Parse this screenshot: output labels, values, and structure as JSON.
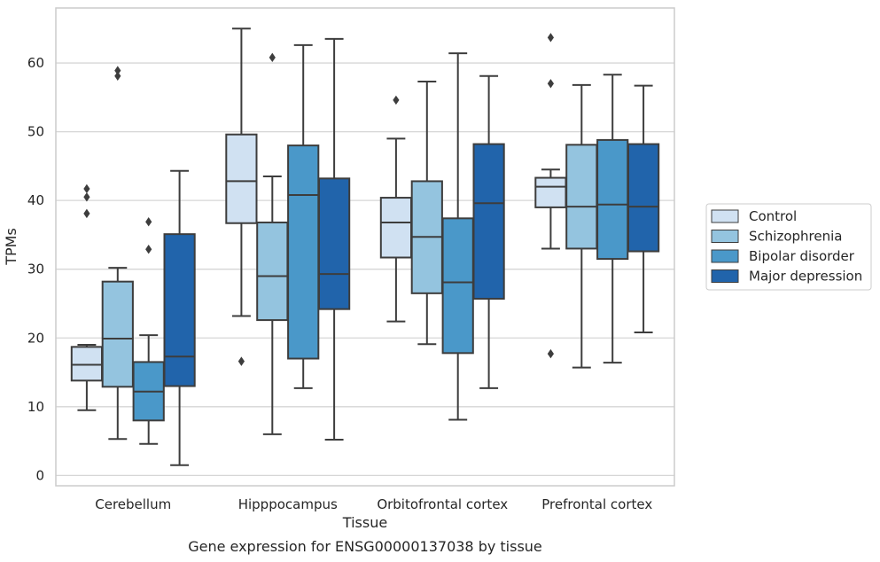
{
  "chart_data": {
    "type": "box",
    "caption": "Gene expression for ENSG00000137038 by tissue",
    "xlabel": "Tissue",
    "ylabel": "TPMs",
    "ylim": [
      -1.5,
      68
    ],
    "yticks": [
      0,
      10,
      20,
      30,
      40,
      50,
      60
    ],
    "grid": true,
    "legend_position": "right",
    "categories": [
      "Cerebellum",
      "Hipppocampus",
      "Orbitofrontal cortex",
      "Prefrontal cortex"
    ],
    "series": [
      {
        "name": "Control",
        "color": "#d0e1f2",
        "boxes": [
          {
            "whisker_low": 9.5,
            "q1": 13.8,
            "median": 16.1,
            "q3": 18.7,
            "whisker_high": 19.0,
            "outliers": [
              38.1,
              40.5,
              41.7
            ]
          },
          {
            "whisker_low": 23.2,
            "q1": 36.7,
            "median": 42.8,
            "q3": 49.6,
            "whisker_high": 65.0,
            "outliers": [
              16.6
            ]
          },
          {
            "whisker_low": 22.4,
            "q1": 31.7,
            "median": 36.8,
            "q3": 40.4,
            "whisker_high": 49.0,
            "outliers": [
              54.6
            ]
          },
          {
            "whisker_low": 33.0,
            "q1": 39.0,
            "median": 42.0,
            "q3": 43.3,
            "whisker_high": 44.5,
            "outliers": [
              17.7,
              57.0,
              63.7
            ]
          }
        ]
      },
      {
        "name": "Schizophrenia",
        "color": "#94c4df",
        "boxes": [
          {
            "whisker_low": 5.3,
            "q1": 12.9,
            "median": 19.9,
            "q3": 28.2,
            "whisker_high": 30.2,
            "outliers": [
              58.1,
              58.9
            ]
          },
          {
            "whisker_low": 6.0,
            "q1": 22.6,
            "median": 29.0,
            "q3": 36.8,
            "whisker_high": 43.5,
            "outliers": [
              60.8
            ]
          },
          {
            "whisker_low": 19.1,
            "q1": 26.5,
            "median": 34.7,
            "q3": 42.8,
            "whisker_high": 57.3,
            "outliers": []
          },
          {
            "whisker_low": 15.7,
            "q1": 33.0,
            "median": 39.1,
            "q3": 48.1,
            "whisker_high": 56.8,
            "outliers": []
          }
        ]
      },
      {
        "name": "Bipolar disorder",
        "color": "#4a98c9",
        "boxes": [
          {
            "whisker_low": 4.6,
            "q1": 8.0,
            "median": 12.2,
            "q3": 16.5,
            "whisker_high": 20.4,
            "outliers": [
              32.9,
              36.9
            ]
          },
          {
            "whisker_low": 12.7,
            "q1": 17.0,
            "median": 40.8,
            "q3": 48.0,
            "whisker_high": 62.6,
            "outliers": []
          },
          {
            "whisker_low": 8.1,
            "q1": 17.8,
            "median": 28.1,
            "q3": 37.4,
            "whisker_high": 61.4,
            "outliers": []
          },
          {
            "whisker_low": 16.4,
            "q1": 31.5,
            "median": 39.4,
            "q3": 48.8,
            "whisker_high": 58.3,
            "outliers": []
          }
        ]
      },
      {
        "name": "Major depression",
        "color": "#2164ab",
        "boxes": [
          {
            "whisker_low": 1.5,
            "q1": 13.0,
            "median": 17.3,
            "q3": 35.1,
            "whisker_high": 44.3,
            "outliers": []
          },
          {
            "whisker_low": 5.2,
            "q1": 24.2,
            "median": 29.3,
            "q3": 43.2,
            "whisker_high": 63.5,
            "outliers": []
          },
          {
            "whisker_low": 12.7,
            "q1": 25.7,
            "median": 39.6,
            "q3": 48.2,
            "whisker_high": 58.1,
            "outliers": []
          },
          {
            "whisker_low": 20.8,
            "q1": 32.6,
            "median": 39.1,
            "q3": 48.2,
            "whisker_high": 56.7,
            "outliers": []
          }
        ]
      }
    ]
  },
  "style": {
    "grid_color": "#d6d6d6",
    "frame_color": "#cccccc",
    "line_color": "#3d3d3d",
    "text_color": "#262626"
  }
}
